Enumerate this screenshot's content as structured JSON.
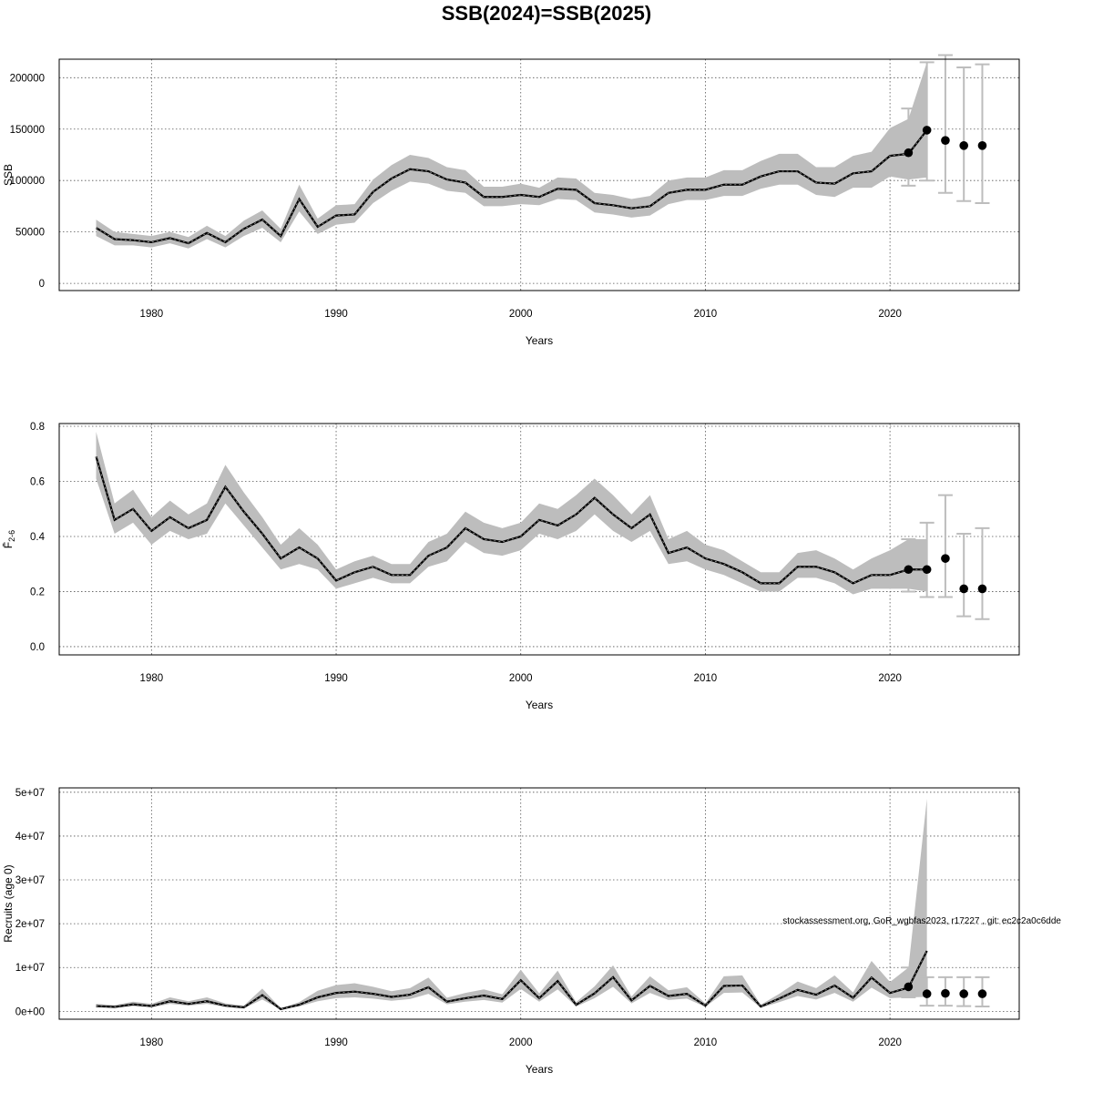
{
  "title": "SSB(2024)=SSB(2025)",
  "footer_note": "stockassessment.org, GoR_wgbfas2023, r17227 , git: ec2c2a0c6dde",
  "chart_data": [
    {
      "type": "line",
      "xlabel": "Years",
      "ylabel": "SSB",
      "xlim": [
        1975,
        2027
      ],
      "ylim": [
        -7000,
        218000
      ],
      "xticks": [
        1980,
        1990,
        2000,
        2010,
        2020
      ],
      "yticks": [
        0,
        50000,
        100000,
        150000,
        200000
      ],
      "ytick_labels": [
        "0",
        "50000",
        "100000",
        "150000",
        "200000"
      ],
      "grid": true,
      "series": [
        {
          "x": [
            1977,
            1978,
            1979,
            1980,
            1981,
            1982,
            1983,
            1984,
            1985,
            1986,
            1987,
            1988,
            1989,
            1990,
            1991,
            1992,
            1993,
            1994,
            1995,
            1996,
            1997,
            1998,
            1999,
            2000,
            2001,
            2002,
            2003,
            2004,
            2005,
            2006,
            2007,
            2008,
            2009,
            2010,
            2011,
            2012,
            2013,
            2014,
            2015,
            2016,
            2017,
            2018,
            2019,
            2020,
            2021,
            2022
          ],
          "y": [
            54000,
            43000,
            42000,
            40000,
            44000,
            39000,
            49000,
            40000,
            53000,
            62000,
            46000,
            82000,
            55000,
            66000,
            67000,
            89000,
            102000,
            111000,
            109000,
            101000,
            98000,
            84000,
            84000,
            86000,
            84000,
            92000,
            91000,
            78000,
            76000,
            73000,
            75000,
            88000,
            91000,
            91000,
            96000,
            96000,
            104000,
            109000,
            109000,
            98000,
            97000,
            107000,
            109000,
            124000,
            126000,
            149000
          ],
          "lower": [
            46000,
            37000,
            37000,
            35000,
            39000,
            34000,
            43000,
            35000,
            46000,
            54000,
            40000,
            70000,
            48000,
            57000,
            59000,
            78000,
            90000,
            99000,
            97000,
            90000,
            88000,
            75000,
            75000,
            77000,
            76000,
            82000,
            81000,
            69000,
            67000,
            64000,
            66000,
            77000,
            81000,
            81000,
            85000,
            85000,
            92000,
            96000,
            96000,
            86000,
            84000,
            93000,
            93000,
            104000,
            101000,
            103000
          ],
          "upper": [
            62000,
            50000,
            48000,
            46000,
            50000,
            45000,
            56000,
            46000,
            61000,
            71000,
            53000,
            96000,
            63000,
            76000,
            77000,
            101000,
            115000,
            125000,
            122000,
            113000,
            110000,
            94000,
            94000,
            97000,
            93000,
            103000,
            102000,
            88000,
            86000,
            82000,
            85000,
            100000,
            103000,
            103000,
            110000,
            110000,
            119000,
            126000,
            126000,
            113000,
            113000,
            124000,
            128000,
            151000,
            160000,
            215000
          ]
        }
      ],
      "forecast": [
        {
          "x": 2021,
          "y": 127000,
          "lower": 95000,
          "upper": 170000
        },
        {
          "x": 2022,
          "y": 149000,
          "lower": 100000,
          "upper": 215000
        },
        {
          "x": 2023,
          "y": 139000,
          "lower": 88000,
          "upper": 222000
        },
        {
          "x": 2024,
          "y": 134000,
          "lower": 80000,
          "upper": 210000
        },
        {
          "x": 2025,
          "y": 134000,
          "lower": 78000,
          "upper": 213000
        }
      ]
    },
    {
      "type": "line",
      "xlabel": "Years",
      "ylabel": "F̄ 2-6",
      "ylabel_main": "F̄",
      "ylabel_sub": "2-6",
      "xlim": [
        1975,
        2027
      ],
      "ylim": [
        -0.03,
        0.81
      ],
      "xticks": [
        1980,
        1990,
        2000,
        2010,
        2020
      ],
      "yticks": [
        0.0,
        0.2,
        0.4,
        0.6,
        0.8
      ],
      "ytick_labels": [
        "0.0",
        "0.2",
        "0.4",
        "0.6",
        "0.8"
      ],
      "grid": true,
      "series": [
        {
          "x": [
            1977,
            1978,
            1979,
            1980,
            1981,
            1982,
            1983,
            1984,
            1985,
            1986,
            1987,
            1988,
            1989,
            1990,
            1991,
            1992,
            1993,
            1994,
            1995,
            1996,
            1997,
            1998,
            1999,
            2000,
            2001,
            2002,
            2003,
            2004,
            2005,
            2006,
            2007,
            2008,
            2009,
            2010,
            2011,
            2012,
            2013,
            2014,
            2015,
            2016,
            2017,
            2018,
            2019,
            2020,
            2021,
            2022
          ],
          "y": [
            0.69,
            0.46,
            0.5,
            0.42,
            0.47,
            0.43,
            0.46,
            0.58,
            0.49,
            0.41,
            0.32,
            0.36,
            0.32,
            0.24,
            0.27,
            0.29,
            0.26,
            0.26,
            0.33,
            0.36,
            0.43,
            0.39,
            0.38,
            0.4,
            0.46,
            0.44,
            0.48,
            0.54,
            0.48,
            0.43,
            0.48,
            0.34,
            0.36,
            0.32,
            0.3,
            0.27,
            0.23,
            0.23,
            0.29,
            0.29,
            0.27,
            0.23,
            0.26,
            0.26,
            0.28,
            0.28
          ],
          "lower": [
            0.61,
            0.41,
            0.45,
            0.37,
            0.42,
            0.39,
            0.41,
            0.52,
            0.44,
            0.36,
            0.28,
            0.3,
            0.28,
            0.21,
            0.23,
            0.25,
            0.23,
            0.23,
            0.29,
            0.31,
            0.38,
            0.34,
            0.33,
            0.35,
            0.41,
            0.39,
            0.42,
            0.48,
            0.42,
            0.38,
            0.42,
            0.3,
            0.31,
            0.28,
            0.26,
            0.23,
            0.2,
            0.2,
            0.25,
            0.25,
            0.23,
            0.19,
            0.21,
            0.21,
            0.21,
            0.2
          ],
          "upper": [
            0.78,
            0.52,
            0.57,
            0.47,
            0.53,
            0.48,
            0.52,
            0.66,
            0.56,
            0.47,
            0.37,
            0.43,
            0.37,
            0.28,
            0.31,
            0.33,
            0.3,
            0.3,
            0.38,
            0.41,
            0.49,
            0.45,
            0.43,
            0.45,
            0.52,
            0.5,
            0.55,
            0.61,
            0.55,
            0.48,
            0.55,
            0.39,
            0.42,
            0.37,
            0.35,
            0.31,
            0.27,
            0.27,
            0.34,
            0.35,
            0.32,
            0.28,
            0.32,
            0.35,
            0.39,
            0.39
          ]
        }
      ],
      "forecast": [
        {
          "x": 2021,
          "y": 0.28,
          "lower": 0.2,
          "upper": 0.39
        },
        {
          "x": 2022,
          "y": 0.28,
          "lower": 0.18,
          "upper": 0.45
        },
        {
          "x": 2023,
          "y": 0.32,
          "lower": 0.18,
          "upper": 0.55
        },
        {
          "x": 2024,
          "y": 0.21,
          "lower": 0.11,
          "upper": 0.41
        },
        {
          "x": 2025,
          "y": 0.21,
          "lower": 0.1,
          "upper": 0.43
        }
      ]
    },
    {
      "type": "line",
      "xlabel": "Years",
      "ylabel": "Recruits (age 0)",
      "xlim": [
        1975,
        2027
      ],
      "ylim": [
        -1800000,
        51000000
      ],
      "xticks": [
        1980,
        1990,
        2000,
        2010,
        2020
      ],
      "yticks": [
        0,
        10000000,
        20000000,
        30000000,
        40000000,
        50000000
      ],
      "ytick_labels": [
        "0e+00",
        "1e+07",
        "2e+07",
        "3e+07",
        "4e+07",
        "5e+07"
      ],
      "grid": true,
      "series": [
        {
          "x": [
            1977,
            1978,
            1979,
            1980,
            1981,
            1982,
            1983,
            1984,
            1985,
            1986,
            1987,
            1988,
            1989,
            1990,
            1991,
            1992,
            1993,
            1994,
            1995,
            1996,
            1997,
            1998,
            1999,
            2000,
            2001,
            2002,
            2003,
            2004,
            2005,
            2006,
            2007,
            2008,
            2009,
            2010,
            2011,
            2012,
            2013,
            2014,
            2015,
            2016,
            2017,
            2018,
            2019,
            2020,
            2021,
            2022
          ],
          "y": [
            1200000,
            1000000,
            1600000,
            1200000,
            2300000,
            1700000,
            2300000,
            1300000,
            900000,
            3700000,
            500000,
            1500000,
            3200000,
            4200000,
            4500000,
            4000000,
            3300000,
            3800000,
            5500000,
            2200000,
            3000000,
            3600000,
            2800000,
            7100000,
            3000000,
            6900000,
            1500000,
            4100000,
            7800000,
            2500000,
            5800000,
            3500000,
            4000000,
            1300000,
            5800000,
            5900000,
            1100000,
            2900000,
            4900000,
            3800000,
            5900000,
            3100000,
            7700000,
            4200000,
            5400000,
            13800000
          ],
          "lower": [
            900000,
            800000,
            1200000,
            900000,
            1700000,
            1300000,
            1700000,
            1000000,
            700000,
            2700000,
            400000,
            1100000,
            2300000,
            3000000,
            3200000,
            2900000,
            2400000,
            2800000,
            4000000,
            1600000,
            2200000,
            2600000,
            2000000,
            5100000,
            2200000,
            5000000,
            1100000,
            3000000,
            5600000,
            1800000,
            4200000,
            2600000,
            2900000,
            1000000,
            4200000,
            4300000,
            800000,
            2100000,
            3500000,
            2700000,
            4200000,
            2200000,
            5400000,
            3000000,
            3200000,
            3300000
          ],
          "upper": [
            1700000,
            1400000,
            2200000,
            1700000,
            3200000,
            2300000,
            3200000,
            1800000,
            1300000,
            5200000,
            700000,
            2100000,
            4700000,
            6000000,
            6400000,
            5600000,
            4600000,
            5300000,
            7700000,
            3100000,
            4200000,
            5000000,
            3900000,
            9500000,
            4100000,
            9300000,
            2100000,
            5700000,
            10500000,
            3400000,
            8000000,
            4800000,
            5500000,
            1800000,
            8000000,
            8200000,
            1500000,
            4000000,
            6800000,
            5300000,
            8200000,
            4300000,
            11500000,
            6700000,
            10000000,
            48500000
          ]
        }
      ],
      "forecast": [
        {
          "x": 2021,
          "y": 5600000,
          "lower": 3200000,
          "upper": 10000000
        },
        {
          "x": 2022,
          "y": 4000000,
          "lower": 1300000,
          "upper": 7800000
        },
        {
          "x": 2023,
          "y": 4100000,
          "lower": 1300000,
          "upper": 7800000
        },
        {
          "x": 2024,
          "y": 4000000,
          "lower": 1200000,
          "upper": 7800000
        },
        {
          "x": 2025,
          "y": 4000000,
          "lower": 1100000,
          "upper": 7800000
        }
      ]
    }
  ]
}
